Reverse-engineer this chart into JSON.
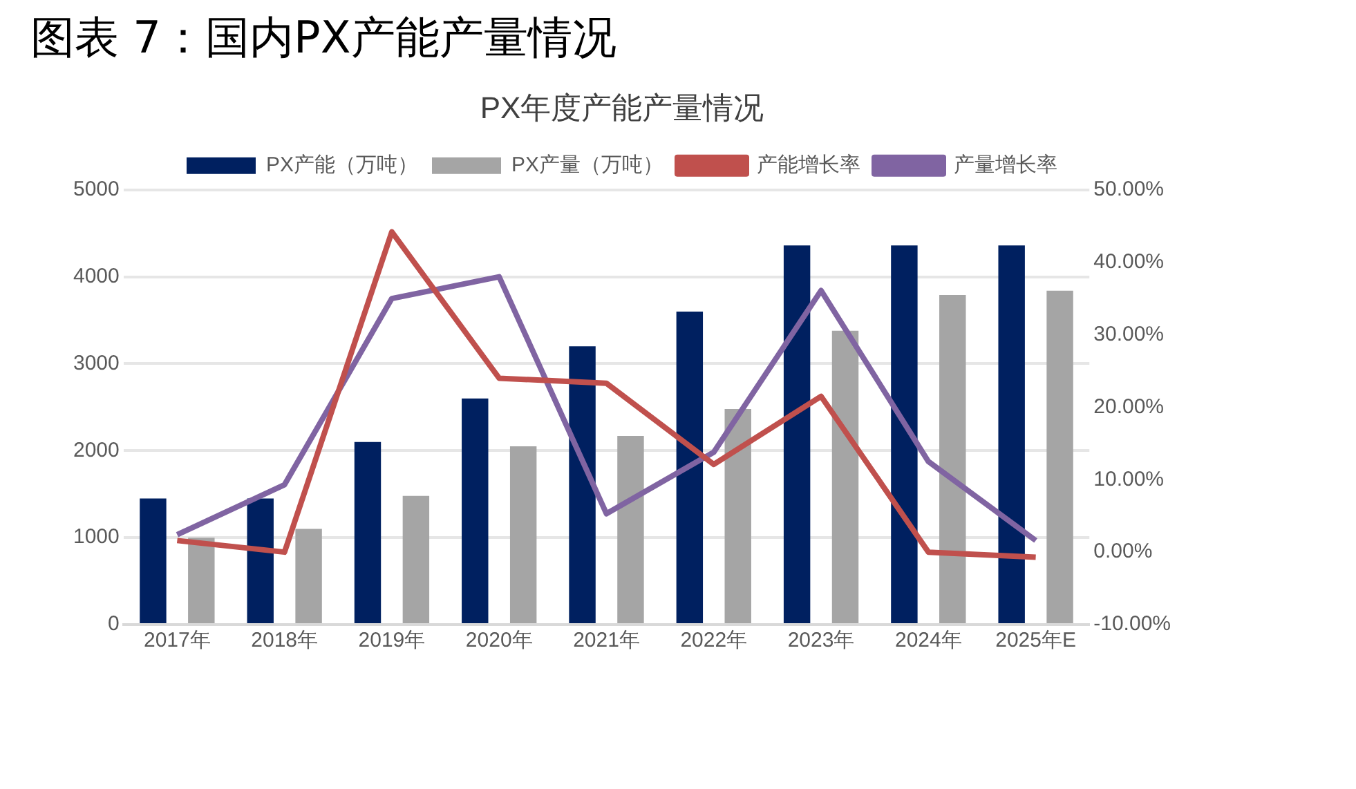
{
  "chart_data": {
    "type": "bar",
    "title": "图表 7：国内PX产能产量情况",
    "subtitle": "PX年度产能产量情况",
    "categories": [
      "2017年",
      "2018年",
      "2019年",
      "2020年",
      "2021年",
      "2022年",
      "2023年",
      "2024年",
      "2025年E"
    ],
    "series": [
      {
        "name": "PX产能（万吨）",
        "color": "#002060",
        "values": [
          1450,
          1450,
          2100,
          2600,
          3200,
          3600,
          4360,
          4360,
          4360
        ]
      },
      {
        "name": "PX产量（万吨）",
        "color": "#a5a5a5",
        "values": [
          1000,
          1100,
          1480,
          2050,
          2170,
          2480,
          3380,
          3790,
          3840
        ]
      },
      {
        "name": "产能增长率",
        "type": "line",
        "axis": "y2",
        "color": "#c0504d",
        "values": [
          1.6,
          0,
          44.2,
          24,
          23.3,
          12.1,
          21.5,
          0,
          -0.7
        ]
      },
      {
        "name": "产量增长率",
        "type": "line",
        "axis": "y2",
        "color": "#8064a2",
        "values": [
          2.4,
          9.3,
          35,
          38,
          5.3,
          13.8,
          36.1,
          12.5,
          1.6
        ]
      }
    ],
    "ylim": [
      0,
      5000
    ],
    "yticks": [
      0,
      1000,
      2000,
      3000,
      4000,
      5000
    ],
    "y2lim": [
      -10,
      50
    ],
    "y2ticks": [
      {
        "value": -10,
        "label": "-10.00%"
      },
      {
        "value": 0,
        "label": "0.00%"
      },
      {
        "value": 10,
        "label": "10.00%"
      },
      {
        "value": 20,
        "label": "20.00%"
      },
      {
        "value": 30,
        "label": "30.00%"
      },
      {
        "value": 40,
        "label": "40.00%"
      },
      {
        "value": 50,
        "label": "50.00%"
      }
    ],
    "grid": "y",
    "legend": "top",
    "marker": "none",
    "line_style": "solid"
  }
}
